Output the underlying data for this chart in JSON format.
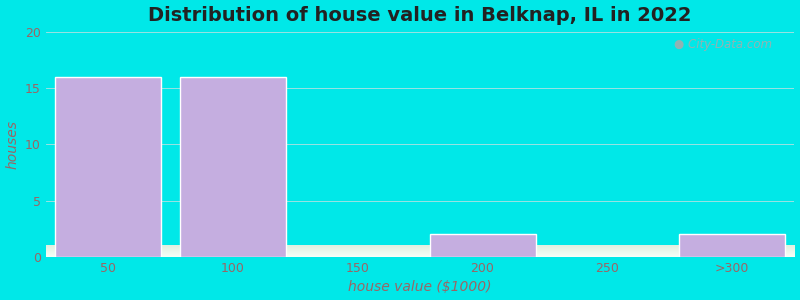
{
  "title": "Distribution of house value in Belknap, IL in 2022",
  "xlabel": "house value ($1000)",
  "ylabel": "houses",
  "categories": [
    "50",
    "100",
    "150",
    "200",
    "250",
    ">300"
  ],
  "values": [
    16,
    16,
    0,
    2,
    0,
    2
  ],
  "bar_color": "#c5aee0",
  "bar_edgecolor": "#ffffff",
  "ylim": [
    0,
    20
  ],
  "yticks": [
    0,
    5,
    10,
    15,
    20
  ],
  "outer_bg": "#00e8e8",
  "plot_bg_color_topleft": "#dff0e0",
  "plot_bg_color_bottomright": "#f8fff8",
  "grid_color": "#e0e0e0",
  "tick_color": "#996666",
  "label_color": "#996666",
  "title_fontsize": 14,
  "axis_label_fontsize": 10,
  "tick_fontsize": 9,
  "bar_width": 0.85
}
